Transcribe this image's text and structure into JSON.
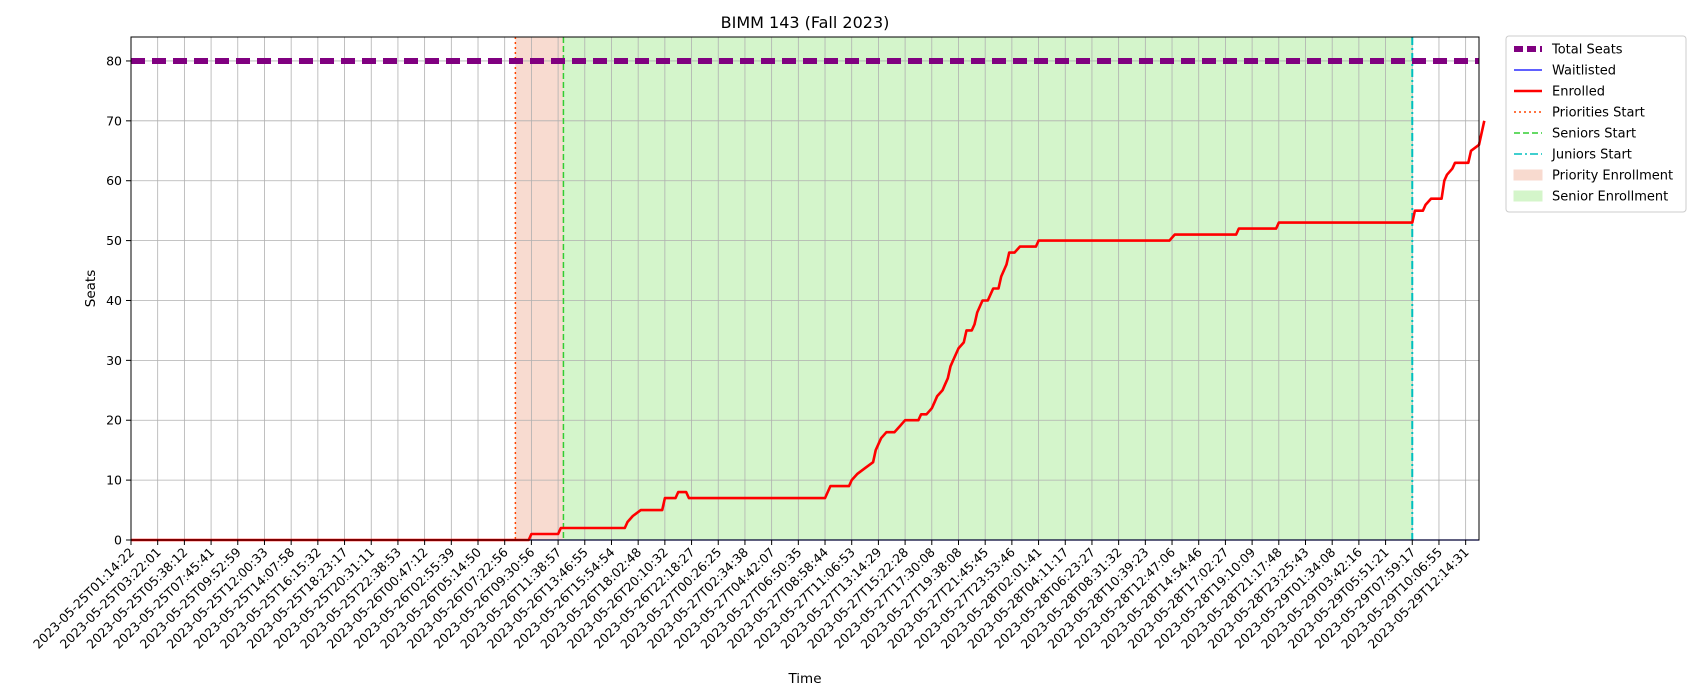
{
  "chart_data": {
    "type": "line",
    "title": "BIMM 143 (Fall 2023)",
    "xlabel": "Time",
    "ylabel": "Seats",
    "ylim": [
      0,
      84
    ],
    "yticks": [
      0,
      10,
      20,
      30,
      40,
      50,
      60,
      70,
      80
    ],
    "xrange_index": [
      0,
      50.5
    ],
    "grid": true,
    "legend_position": "outside-right-top",
    "x_tick_labels": [
      "2023-05-25T01:14:22",
      "2023-05-25T03:22:01",
      "2023-05-25T05:38:12",
      "2023-05-25T07:45:41",
      "2023-05-25T09:52:59",
      "2023-05-25T12:00:33",
      "2023-05-25T14:07:58",
      "2023-05-25T16:15:32",
      "2023-05-25T18:23:17",
      "2023-05-25T20:31:11",
      "2023-05-25T22:38:53",
      "2023-05-26T00:47:12",
      "2023-05-26T02:55:39",
      "2023-05-26T05:14:50",
      "2023-05-26T07:22:56",
      "2023-05-26T09:30:56",
      "2023-05-26T11:38:57",
      "2023-05-26T13:46:55",
      "2023-05-26T15:54:54",
      "2023-05-26T18:02:48",
      "2023-05-26T20:10:32",
      "2023-05-26T22:18:27",
      "2023-05-27T00:26:25",
      "2023-05-27T02:34:38",
      "2023-05-27T04:42:07",
      "2023-05-27T06:50:35",
      "2023-05-27T08:58:44",
      "2023-05-27T11:06:53",
      "2023-05-27T13:14:29",
      "2023-05-27T15:22:28",
      "2023-05-27T17:30:08",
      "2023-05-27T19:38:08",
      "2023-05-27T21:45:45",
      "2023-05-27T23:53:46",
      "2023-05-28T02:01:41",
      "2023-05-28T04:11:17",
      "2023-05-28T06:23:27",
      "2023-05-28T08:31:32",
      "2023-05-28T10:39:23",
      "2023-05-28T12:47:06",
      "2023-05-28T14:54:46",
      "2023-05-28T17:02:27",
      "2023-05-28T19:10:09",
      "2023-05-28T21:17:48",
      "2023-05-28T23:25:43",
      "2023-05-29T01:34:08",
      "2023-05-29T03:42:16",
      "2023-05-29T05:51:21",
      "2023-05-29T07:59:17",
      "2023-05-29T10:06:55",
      "2023-05-29T12:14:31"
    ],
    "series": [
      {
        "name": "Total Seats",
        "color": "#800080",
        "style": "dashed-thick",
        "points": [
          [
            0,
            80
          ],
          [
            50.5,
            80
          ]
        ]
      },
      {
        "name": "Waitlisted",
        "color": "#0000ff",
        "style": "solid-thin",
        "points": [
          [
            0,
            0
          ],
          [
            50.5,
            0
          ]
        ]
      },
      {
        "name": "Enrolled",
        "color": "#ff0000",
        "style": "solid",
        "points": [
          [
            0,
            0
          ],
          [
            14.9,
            0
          ],
          [
            15.0,
            1
          ],
          [
            16.0,
            1
          ],
          [
            16.1,
            2
          ],
          [
            18.5,
            2
          ],
          [
            18.6,
            3
          ],
          [
            18.8,
            4
          ],
          [
            19.1,
            5
          ],
          [
            19.9,
            5
          ],
          [
            20.0,
            7
          ],
          [
            20.4,
            7
          ],
          [
            20.5,
            8
          ],
          [
            20.8,
            8
          ],
          [
            20.9,
            7
          ],
          [
            26.0,
            7
          ],
          [
            26.1,
            8
          ],
          [
            26.2,
            9
          ],
          [
            26.9,
            9
          ],
          [
            27.0,
            10
          ],
          [
            27.2,
            11
          ],
          [
            27.5,
            12
          ],
          [
            27.8,
            13
          ],
          [
            27.9,
            15
          ],
          [
            28.0,
            16
          ],
          [
            28.1,
            17
          ],
          [
            28.3,
            18
          ],
          [
            28.6,
            18
          ],
          [
            28.8,
            19
          ],
          [
            29.0,
            20
          ],
          [
            29.5,
            20
          ],
          [
            29.6,
            21
          ],
          [
            29.8,
            21
          ],
          [
            30.0,
            22
          ],
          [
            30.1,
            23
          ],
          [
            30.2,
            24
          ],
          [
            30.4,
            25
          ],
          [
            30.5,
            26
          ],
          [
            30.6,
            27
          ],
          [
            30.7,
            29
          ],
          [
            30.8,
            30
          ],
          [
            30.9,
            31
          ],
          [
            31.0,
            32
          ],
          [
            31.2,
            33
          ],
          [
            31.3,
            35
          ],
          [
            31.5,
            35
          ],
          [
            31.6,
            36
          ],
          [
            31.7,
            38
          ],
          [
            31.9,
            40
          ],
          [
            32.1,
            40
          ],
          [
            32.3,
            42
          ],
          [
            32.5,
            42
          ],
          [
            32.6,
            44
          ],
          [
            32.8,
            46
          ],
          [
            32.9,
            48
          ],
          [
            33.1,
            48
          ],
          [
            33.3,
            49
          ],
          [
            33.9,
            49
          ],
          [
            34.0,
            50
          ],
          [
            38.9,
            50
          ],
          [
            39.1,
            51
          ],
          [
            41.4,
            51
          ],
          [
            41.5,
            52
          ],
          [
            42.9,
            52
          ],
          [
            43.0,
            53
          ],
          [
            48.0,
            53
          ],
          [
            48.1,
            55
          ],
          [
            48.4,
            55
          ],
          [
            48.5,
            56
          ],
          [
            48.7,
            57
          ],
          [
            49.1,
            57
          ],
          [
            49.2,
            60
          ],
          [
            49.3,
            61
          ],
          [
            49.5,
            62
          ],
          [
            49.6,
            63
          ],
          [
            50.1,
            63
          ],
          [
            50.2,
            65
          ],
          [
            50.5,
            66
          ],
          [
            50.7,
            70
          ]
        ]
      }
    ],
    "vlines": [
      {
        "name": "Priorities Start",
        "x": 14.4,
        "color": "#ff4500",
        "style": "dotted"
      },
      {
        "name": "Seniors Start",
        "x": 16.2,
        "color": "#32cd32",
        "style": "dashed"
      },
      {
        "name": "Juniors Start",
        "x": 48.0,
        "color": "#00bfbf",
        "style": "dashdot"
      }
    ],
    "spans": [
      {
        "name": "Priority Enrollment",
        "x0": 14.4,
        "x1": 16.2,
        "color": "#f4c3b0"
      },
      {
        "name": "Senior Enrollment",
        "x0": 16.2,
        "x1": 48.0,
        "color": "#b8efa8"
      }
    ],
    "legend": [
      "Total Seats",
      "Waitlisted",
      "Enrolled",
      "Priorities Start",
      "Seniors Start",
      "Juniors Start",
      "Priority Enrollment",
      "Senior Enrollment"
    ]
  }
}
